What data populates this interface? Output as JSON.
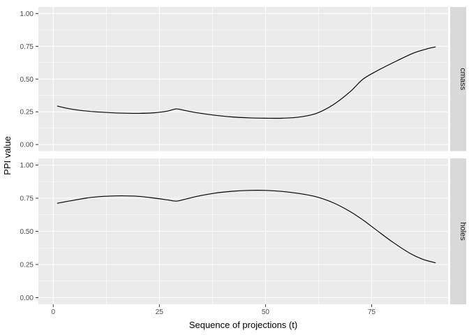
{
  "chart_data": {
    "type": "line",
    "title": "",
    "xlabel": "Sequence of projections (t)",
    "ylabel": "PPI value",
    "legend_position": "none",
    "grid": true,
    "x_domain": [
      -3.5,
      93
    ],
    "y_domain": [
      -0.05,
      1.05
    ],
    "x_breaks": [
      0,
      25,
      50,
      75
    ],
    "x_break_labels": [
      "0",
      "25",
      "50",
      "75"
    ],
    "x_minor_breaks": [
      12.5,
      37.5,
      62.5,
      87.5
    ],
    "y_breaks": [
      0,
      0.25,
      0.5,
      0.75,
      1
    ],
    "y_break_labels": [
      "0.00",
      "0.25",
      "0.50",
      "0.75",
      "1.00"
    ],
    "y_minor_breaks": [
      0.125,
      0.375,
      0.625,
      0.875
    ],
    "colors": {
      "panel_bg": "#ebebeb",
      "grid": "#ffffff",
      "strip_bg": "#d9d9d9",
      "line": "#000000",
      "tick_text": "#4d4d4d",
      "tick_mark": "#333333"
    },
    "facets": [
      {
        "label": "cmass",
        "series": [
          {
            "name": "PPI",
            "color": "#000000",
            "points": [
              [
                1,
                0.293
              ],
              [
                4,
                0.272
              ],
              [
                8,
                0.255
              ],
              [
                12,
                0.246
              ],
              [
                16,
                0.24
              ],
              [
                20,
                0.238
              ],
              [
                24,
                0.243
              ],
              [
                27,
                0.256
              ],
              [
                29,
                0.272
              ],
              [
                31,
                0.26
              ],
              [
                34,
                0.242
              ],
              [
                38,
                0.224
              ],
              [
                42,
                0.211
              ],
              [
                46,
                0.204
              ],
              [
                50,
                0.201
              ],
              [
                54,
                0.201
              ],
              [
                58,
                0.21
              ],
              [
                62,
                0.238
              ],
              [
                66,
                0.305
              ],
              [
                70,
                0.405
              ],
              [
                73,
                0.5
              ],
              [
                77,
                0.575
              ],
              [
                81,
                0.64
              ],
              [
                85,
                0.7
              ],
              [
                88,
                0.73
              ],
              [
                90,
                0.745
              ]
            ]
          }
        ]
      },
      {
        "label": "holes",
        "series": [
          {
            "name": "PPI",
            "color": "#000000",
            "points": [
              [
                1,
                0.712
              ],
              [
                4,
                0.73
              ],
              [
                8,
                0.752
              ],
              [
                12,
                0.764
              ],
              [
                16,
                0.768
              ],
              [
                20,
                0.764
              ],
              [
                24,
                0.75
              ],
              [
                27,
                0.737
              ],
              [
                29,
                0.728
              ],
              [
                31,
                0.742
              ],
              [
                34,
                0.765
              ],
              [
                38,
                0.788
              ],
              [
                42,
                0.802
              ],
              [
                46,
                0.809
              ],
              [
                50,
                0.809
              ],
              [
                54,
                0.801
              ],
              [
                58,
                0.785
              ],
              [
                62,
                0.76
              ],
              [
                66,
                0.715
              ],
              [
                70,
                0.648
              ],
              [
                73,
                0.585
              ],
              [
                76,
                0.513
              ],
              [
                80,
                0.418
              ],
              [
                84,
                0.335
              ],
              [
                87,
                0.29
              ],
              [
                90,
                0.263
              ]
            ]
          }
        ]
      }
    ]
  }
}
